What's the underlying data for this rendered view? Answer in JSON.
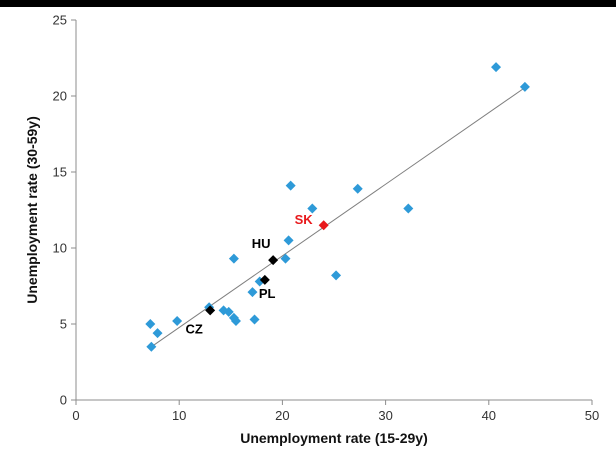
{
  "chart_data": {
    "type": "scatter",
    "title": "",
    "xlabel": "Unemployment rate (15-29y)",
    "ylabel": "Unemployment rate (30-59y)",
    "xlim": [
      0,
      50
    ],
    "ylim": [
      0,
      25
    ],
    "xticks": [
      0,
      10,
      20,
      30,
      40,
      50
    ],
    "yticks": [
      0,
      5,
      10,
      15,
      20,
      25
    ],
    "grid": false,
    "series": [
      {
        "color": "#2E9AD8",
        "marker": "diamond",
        "points": [
          {
            "x": 7.2,
            "y": 5.0
          },
          {
            "x": 7.9,
            "y": 4.4
          },
          {
            "x": 7.3,
            "y": 3.5
          },
          {
            "x": 9.8,
            "y": 5.2
          },
          {
            "x": 12.9,
            "y": 6.1
          },
          {
            "x": 14.3,
            "y": 5.9
          },
          {
            "x": 14.8,
            "y": 5.8
          },
          {
            "x": 15.3,
            "y": 5.4
          },
          {
            "x": 15.5,
            "y": 5.2
          },
          {
            "x": 17.1,
            "y": 7.1
          },
          {
            "x": 17.3,
            "y": 5.3
          },
          {
            "x": 17.8,
            "y": 7.8
          },
          {
            "x": 15.3,
            "y": 9.3
          },
          {
            "x": 20.3,
            "y": 9.3
          },
          {
            "x": 20.6,
            "y": 10.5
          },
          {
            "x": 20.8,
            "y": 14.1
          },
          {
            "x": 22.9,
            "y": 12.6
          },
          {
            "x": 25.2,
            "y": 8.2
          },
          {
            "x": 27.3,
            "y": 13.9
          },
          {
            "x": 32.2,
            "y": 12.6
          },
          {
            "x": 40.7,
            "y": 21.9
          },
          {
            "x": 43.5,
            "y": 20.6
          }
        ]
      },
      {
        "color": "#000000",
        "marker": "diamond",
        "points": [
          {
            "x": 13.0,
            "y": 5.9,
            "label": "CZ"
          },
          {
            "x": 18.3,
            "y": 7.9,
            "label": "PL"
          },
          {
            "x": 19.1,
            "y": 9.2,
            "label": "HU"
          }
        ]
      },
      {
        "color": "#E8191C",
        "marker": "diamond",
        "points": [
          {
            "x": 24.0,
            "y": 11.5,
            "label": "SK"
          }
        ]
      }
    ],
    "trendline": {
      "x": [
        7.3,
        43.6
      ],
      "y": [
        3.5,
        20.6
      ],
      "color": "#7f7f7f"
    }
  }
}
